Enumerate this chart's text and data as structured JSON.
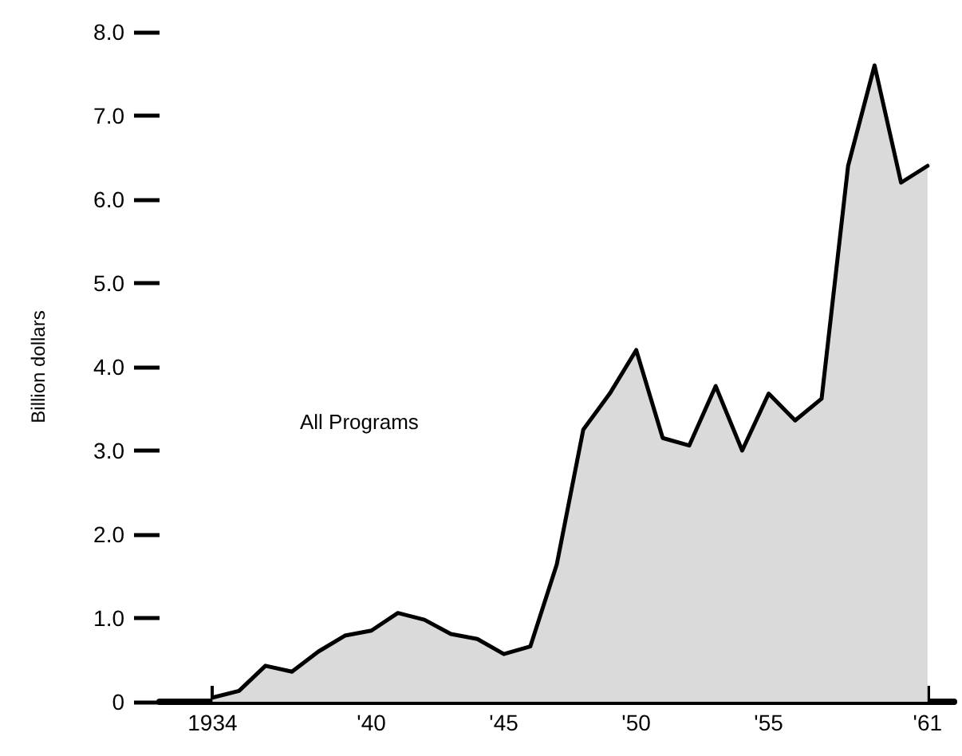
{
  "chart_data": {
    "type": "area",
    "ylabel": "Billion dollars",
    "annotations": [
      "All Programs"
    ],
    "x": [
      1934,
      1935,
      1936,
      1937,
      1938,
      1939,
      1940,
      1941,
      1942,
      1943,
      1944,
      1945,
      1946,
      1947,
      1948,
      1949,
      1950,
      1951,
      1952,
      1953,
      1954,
      1955,
      1956,
      1957,
      1958,
      1959,
      1960,
      1961
    ],
    "series": [
      {
        "color": "#000000",
        "values": [
          0.05,
          0.13,
          0.43,
          0.36,
          0.6,
          0.79,
          0.85,
          1.06,
          0.98,
          0.81,
          0.75,
          0.57,
          0.66,
          1.64,
          3.25,
          3.68,
          4.2,
          3.15,
          3.06,
          3.77,
          3.0,
          3.68,
          3.36,
          3.62,
          6.4,
          7.6,
          6.2,
          6.4
        ]
      }
    ],
    "xlim": [
      1932,
      1962
    ],
    "xticks": [
      1934,
      {
        "value": 1940,
        "label": "'40"
      },
      {
        "value": 1945,
        "label": "'45"
      },
      {
        "value": 1950,
        "label": "'50"
      },
      {
        "value": 1955,
        "label": "'55"
      },
      {
        "value": 1961,
        "label": "'61"
      }
    ],
    "ylim": [
      0,
      8
    ],
    "yticks": [
      0,
      {
        "value": 1,
        "label": "1.0"
      },
      {
        "value": 2,
        "label": "2.0"
      },
      {
        "value": 3,
        "label": "3.0"
      },
      {
        "value": 4,
        "label": "4.0"
      },
      {
        "value": 5,
        "label": "5.0"
      },
      {
        "value": 6,
        "label": "6.0"
      },
      {
        "value": 7,
        "label": "7.0"
      },
      {
        "value": 8,
        "label": "8.0"
      }
    ],
    "grid": false,
    "marker": "none",
    "line_style": "solid"
  }
}
